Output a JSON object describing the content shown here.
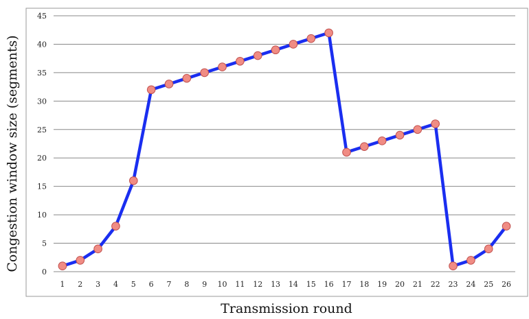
{
  "chart_data": {
    "type": "line",
    "title": "",
    "xlabel": "Transmission round",
    "ylabel": "Congestion window size (segments)",
    "x": [
      1,
      2,
      3,
      4,
      5,
      6,
      7,
      8,
      9,
      10,
      11,
      12,
      13,
      14,
      15,
      16,
      17,
      18,
      19,
      20,
      21,
      22,
      23,
      24,
      25,
      26
    ],
    "series": [
      {
        "name": "",
        "values": [
          1,
          2,
          4,
          8,
          16,
          32,
          33,
          34,
          35,
          36,
          37,
          38,
          39,
          40,
          41,
          42,
          21,
          22,
          23,
          24,
          25,
          26,
          1,
          2,
          4,
          8
        ]
      }
    ],
    "ylim": [
      0,
      45
    ],
    "yticks": [
      0,
      5,
      10,
      15,
      20,
      25,
      30,
      35,
      40,
      45
    ],
    "xticks": [
      1,
      2,
      3,
      4,
      5,
      6,
      7,
      8,
      9,
      10,
      11,
      12,
      13,
      14,
      15,
      16,
      17,
      18,
      19,
      20,
      21,
      22,
      23,
      24,
      25,
      26
    ],
    "grid": "horizontal",
    "line_color": "#1a2ef0",
    "marker_color": "#f08c84",
    "marker_edge_color": "#c0504d",
    "gridline_color": "#888888",
    "border_color": "#999999"
  }
}
